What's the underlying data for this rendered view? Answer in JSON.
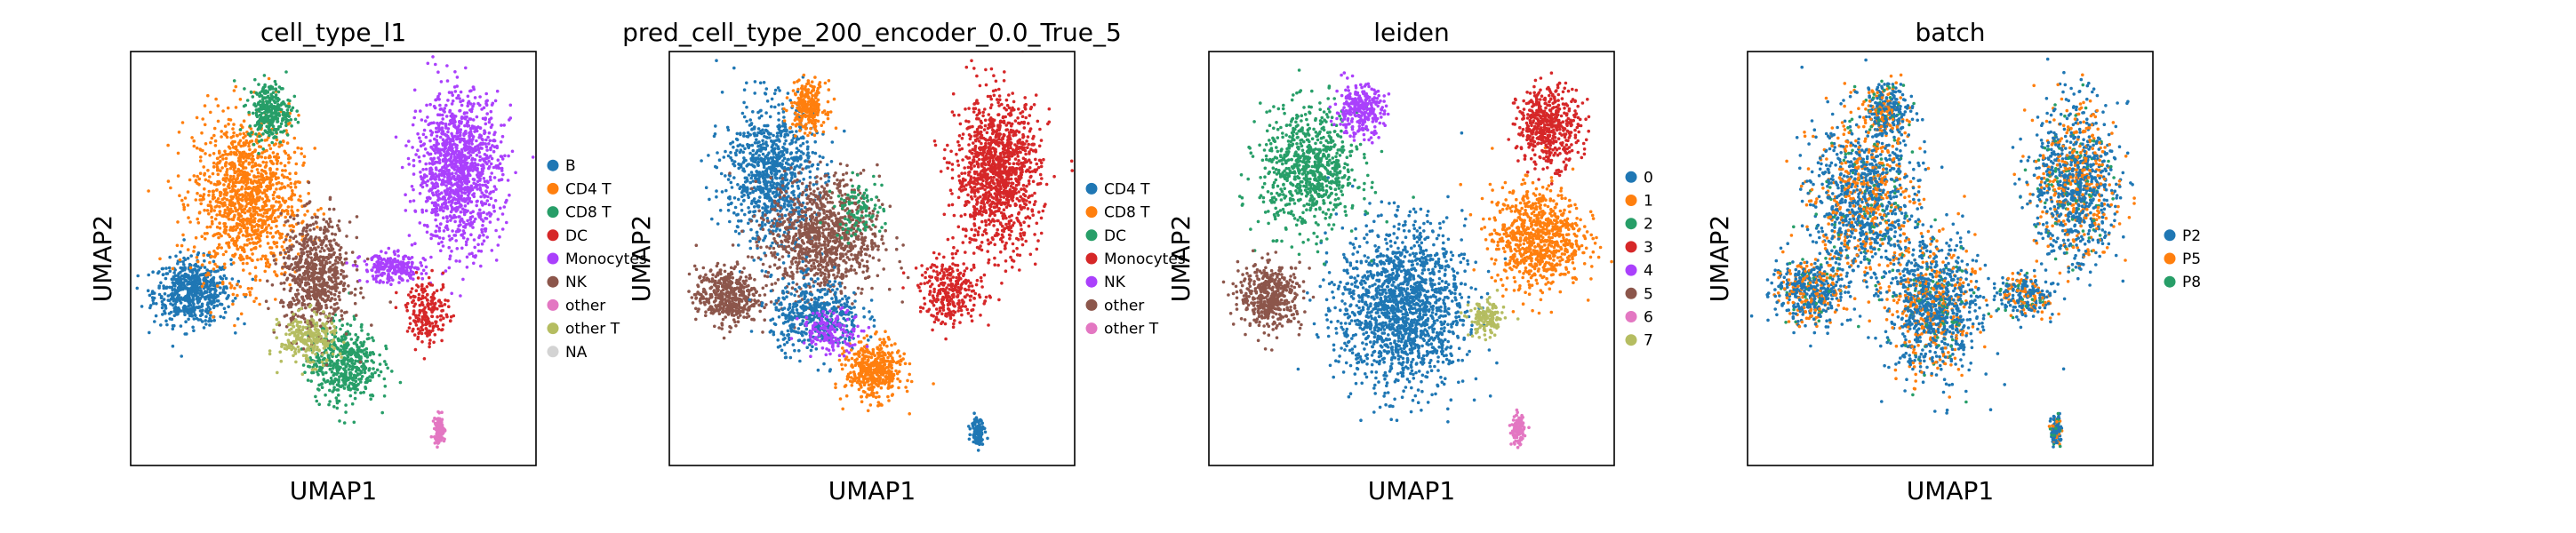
{
  "chart_data": [
    {
      "type": "scatter",
      "title": "cell_type_l1",
      "xlabel": "UMAP1",
      "ylabel": "UMAP2",
      "grid": false,
      "legend_position": "right",
      "legend": [
        {
          "label": "B",
          "color": "#1f77b4"
        },
        {
          "label": "CD4 T",
          "color": "#ff7f0e"
        },
        {
          "label": "CD8 T",
          "color": "#279e68"
        },
        {
          "label": "DC",
          "color": "#d62728"
        },
        {
          "label": "Monocytes",
          "color": "#aa40fc"
        },
        {
          "label": "NK",
          "color": "#8c564b"
        },
        {
          "label": "other",
          "color": "#e377c2"
        },
        {
          "label": "other T",
          "color": "#b5bd61"
        },
        {
          "label": "NA",
          "color": "#d3d3d3"
        }
      ],
      "clusters": [
        {
          "category": "B",
          "x": 1.6,
          "y": 4.4,
          "rx": 1.1,
          "ry": 0.9,
          "n": 600
        },
        {
          "category": "CD4 T",
          "x": 3.0,
          "y": 6.8,
          "rx": 1.5,
          "ry": 2.3,
          "n": 1200
        },
        {
          "category": "CD8 T",
          "x": 3.6,
          "y": 9.0,
          "rx": 0.6,
          "ry": 0.8,
          "n": 300
        },
        {
          "category": "CD8 T",
          "x": 5.5,
          "y": 2.6,
          "rx": 1.0,
          "ry": 1.1,
          "n": 500
        },
        {
          "category": "NK",
          "x": 4.8,
          "y": 4.8,
          "rx": 1.0,
          "ry": 1.6,
          "n": 700
        },
        {
          "category": "other T",
          "x": 4.6,
          "y": 3.2,
          "rx": 0.8,
          "ry": 0.7,
          "n": 250
        },
        {
          "category": "Monocytes",
          "x": 8.5,
          "y": 7.5,
          "rx": 1.2,
          "ry": 2.1,
          "n": 1200
        },
        {
          "category": "Monocytes",
          "x": 6.8,
          "y": 5.0,
          "rx": 0.9,
          "ry": 0.4,
          "n": 250
        },
        {
          "category": "DC",
          "x": 7.7,
          "y": 3.9,
          "rx": 0.6,
          "ry": 0.9,
          "n": 200
        },
        {
          "category": "other",
          "x": 8.0,
          "y": 0.9,
          "rx": 0.15,
          "ry": 0.4,
          "n": 120
        }
      ]
    },
    {
      "type": "scatter",
      "title": "pred_cell_type_200_encoder_0.0_True_5",
      "xlabel": "UMAP1",
      "ylabel": "UMAP2",
      "grid": false,
      "legend_position": "right",
      "legend": [
        {
          "label": "CD4 T",
          "color": "#1f77b4"
        },
        {
          "label": "CD8 T",
          "color": "#ff7f0e"
        },
        {
          "label": "DC",
          "color": "#279e68"
        },
        {
          "label": "Monocytes",
          "color": "#d62728"
        },
        {
          "label": "NK",
          "color": "#aa40fc"
        },
        {
          "label": "other",
          "color": "#8c564b"
        },
        {
          "label": "other T",
          "color": "#e377c2"
        }
      ],
      "clusters": [
        {
          "category": "CD4 T",
          "x": 2.6,
          "y": 7.4,
          "rx": 1.3,
          "ry": 2.0,
          "n": 900
        },
        {
          "category": "other",
          "x": 4.0,
          "y": 5.8,
          "rx": 1.6,
          "ry": 1.7,
          "n": 1000
        },
        {
          "category": "other",
          "x": 1.5,
          "y": 4.3,
          "rx": 0.9,
          "ry": 0.8,
          "n": 450
        },
        {
          "category": "CD4 T",
          "x": 3.8,
          "y": 3.8,
          "rx": 1.3,
          "ry": 1.0,
          "n": 450
        },
        {
          "category": "CD8 T",
          "x": 3.6,
          "y": 9.1,
          "rx": 0.5,
          "ry": 0.7,
          "n": 250
        },
        {
          "category": "CD8 T",
          "x": 5.3,
          "y": 2.4,
          "rx": 0.8,
          "ry": 0.8,
          "n": 450
        },
        {
          "category": "NK",
          "x": 4.2,
          "y": 3.4,
          "rx": 0.9,
          "ry": 0.6,
          "n": 150
        },
        {
          "category": "Monocytes",
          "x": 8.5,
          "y": 7.4,
          "rx": 1.2,
          "ry": 2.1,
          "n": 1200
        },
        {
          "category": "Monocytes",
          "x": 7.3,
          "y": 4.4,
          "rx": 0.9,
          "ry": 0.9,
          "n": 300
        },
        {
          "category": "DC",
          "x": 4.9,
          "y": 6.5,
          "rx": 0.7,
          "ry": 0.8,
          "n": 100
        },
        {
          "category": "CD4 T",
          "x": 8.0,
          "y": 0.9,
          "rx": 0.2,
          "ry": 0.4,
          "n": 100
        }
      ]
    },
    {
      "type": "scatter",
      "title": "leiden",
      "xlabel": "UMAP1",
      "ylabel": "UMAP2",
      "grid": false,
      "legend_position": "right",
      "legend": [
        {
          "label": "0",
          "color": "#1f77b4"
        },
        {
          "label": "1",
          "color": "#ff7f0e"
        },
        {
          "label": "2",
          "color": "#279e68"
        },
        {
          "label": "3",
          "color": "#d62728"
        },
        {
          "label": "4",
          "color": "#aa40fc"
        },
        {
          "label": "5",
          "color": "#8c564b"
        },
        {
          "label": "6",
          "color": "#e377c2"
        },
        {
          "label": "7",
          "color": "#b5bd61"
        }
      ],
      "clusters": [
        {
          "category": "0",
          "x": 5.0,
          "y": 4.0,
          "rx": 1.8,
          "ry": 2.3,
          "n": 1600
        },
        {
          "category": "1",
          "x": 8.5,
          "y": 5.8,
          "rx": 1.3,
          "ry": 1.4,
          "n": 800
        },
        {
          "category": "2",
          "x": 2.6,
          "y": 7.5,
          "rx": 1.4,
          "ry": 1.7,
          "n": 800
        },
        {
          "category": "3",
          "x": 8.8,
          "y": 8.6,
          "rx": 0.9,
          "ry": 1.1,
          "n": 500
        },
        {
          "category": "4",
          "x": 3.9,
          "y": 9.0,
          "rx": 0.7,
          "ry": 0.7,
          "n": 300
        },
        {
          "category": "5",
          "x": 1.6,
          "y": 4.3,
          "rx": 0.9,
          "ry": 0.9,
          "n": 450
        },
        {
          "category": "6",
          "x": 8.0,
          "y": 0.9,
          "rx": 0.18,
          "ry": 0.4,
          "n": 120
        },
        {
          "category": "7",
          "x": 7.2,
          "y": 3.7,
          "rx": 0.5,
          "ry": 0.5,
          "n": 150
        }
      ]
    },
    {
      "type": "scatter",
      "title": "batch",
      "xlabel": "UMAP1",
      "ylabel": "UMAP2",
      "grid": false,
      "legend_position": "right",
      "legend": [
        {
          "label": "P2",
          "color": "#1f77b4"
        },
        {
          "label": "P5",
          "color": "#ff7f0e"
        },
        {
          "label": "P8",
          "color": "#279e68"
        }
      ],
      "mix": {
        "P2": 0.62,
        "P5": 0.3,
        "P8": 0.08
      },
      "clusters": [
        {
          "category": "mixed",
          "x": 3.0,
          "y": 6.8,
          "rx": 1.5,
          "ry": 2.3,
          "n": 1200
        },
        {
          "category": "mixed",
          "x": 1.6,
          "y": 4.4,
          "rx": 1.0,
          "ry": 0.9,
          "n": 500
        },
        {
          "category": "mixed",
          "x": 3.6,
          "y": 9.0,
          "rx": 0.6,
          "ry": 0.8,
          "n": 300
        },
        {
          "category": "mixed",
          "x": 4.8,
          "y": 4.0,
          "rx": 1.3,
          "ry": 1.9,
          "n": 1100
        },
        {
          "category": "mixed",
          "x": 8.5,
          "y": 7.2,
          "rx": 1.2,
          "ry": 2.2,
          "n": 1100
        },
        {
          "category": "mixed",
          "x": 7.2,
          "y": 4.3,
          "rx": 0.8,
          "ry": 0.6,
          "n": 250
        },
        {
          "category": "mixed",
          "x": 8.0,
          "y": 0.9,
          "rx": 0.15,
          "ry": 0.4,
          "n": 120
        }
      ]
    }
  ]
}
